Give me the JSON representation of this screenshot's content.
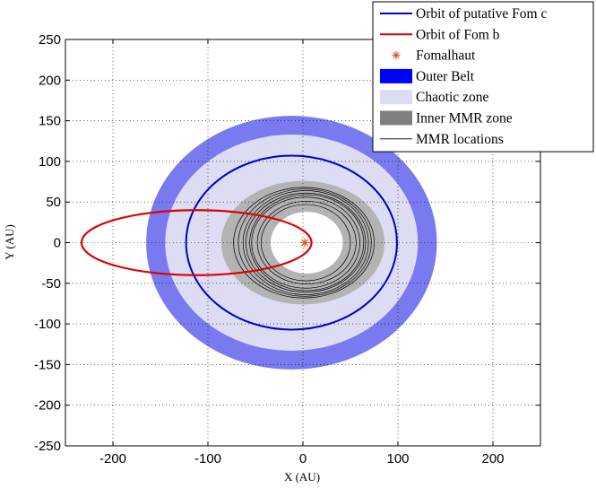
{
  "chart_data": {
    "type": "scatter",
    "xlabel": "X (AU)",
    "ylabel": "Y (AU)",
    "xlim": [
      -250,
      250
    ],
    "ylim": [
      -250,
      250
    ],
    "xticks": [
      -200,
      -100,
      0,
      100,
      200
    ],
    "yticks": [
      250,
      200,
      150,
      100,
      50,
      0,
      -50,
      -100,
      -150,
      -200,
      -250
    ],
    "grid": true,
    "legend_placement": "top-right",
    "legend": [
      {
        "key": "fom_c",
        "label": "Orbit of putative Fom c",
        "style": "line",
        "color": "#0000cc"
      },
      {
        "key": "fom_b",
        "label": "Orbit of Fom b",
        "style": "line",
        "color": "#dd0000"
      },
      {
        "key": "star",
        "label": "Fomalhaut",
        "style": "asterisk",
        "color": "#e0501a"
      },
      {
        "key": "outer_belt",
        "label": "Outer Belt",
        "style": "patch",
        "color": "#0000ff"
      },
      {
        "key": "chaotic",
        "label": "Chaotic zone",
        "style": "patch",
        "color": "#dcdcf2"
      },
      {
        "key": "inner_mmr",
        "label": "Inner MMR zone",
        "style": "patch",
        "color": "#808080"
      },
      {
        "key": "mmr_lines",
        "label": "MMR locations",
        "style": "thin-line",
        "color": "#000000"
      }
    ],
    "regions": [
      {
        "name": "Outer Belt",
        "cx": -12,
        "cy": 0,
        "rx": 153,
        "ry": 156,
        "color": "#7a7af0"
      },
      {
        "name": "Chaotic zone",
        "cx": -12,
        "cy": 0,
        "rx": 133,
        "ry": 133,
        "color": "#dcdcf2"
      },
      {
        "name": "Inner MMR zone",
        "cx": 0,
        "cy": 0,
        "rx": 86,
        "ry": 76,
        "color": "#b3b3b3"
      },
      {
        "name": "Inner hole",
        "cx": 4,
        "cy": 0,
        "rx": 38,
        "ry": 38,
        "color": "#ffffff"
      }
    ],
    "orbit_c": {
      "cx": -12,
      "cy": 0,
      "rx": 111,
      "ry": 107
    },
    "orbit_b": {
      "cx": -112,
      "cy": 0,
      "rx": 121,
      "ry": 40
    },
    "star": {
      "x": 2,
      "y": 0
    },
    "mmr_ellipses": [
      {
        "cx": 3,
        "cy": 0,
        "rx": 47,
        "ry": 47
      },
      {
        "cx": 4,
        "cy": 0,
        "rx": 52,
        "ry": 51
      },
      {
        "cx": 3,
        "cy": 0,
        "rx": 57,
        "ry": 56
      },
      {
        "cx": 4,
        "cy": 0,
        "rx": 60,
        "ry": 59
      },
      {
        "cx": 3,
        "cy": 0,
        "rx": 63,
        "ry": 61
      },
      {
        "cx": 3,
        "cy": 0,
        "rx": 66,
        "ry": 64
      },
      {
        "cx": 2,
        "cy": 0,
        "rx": 70,
        "ry": 66
      },
      {
        "cx": 1,
        "cy": 0,
        "rx": 74,
        "ry": 68
      }
    ]
  }
}
